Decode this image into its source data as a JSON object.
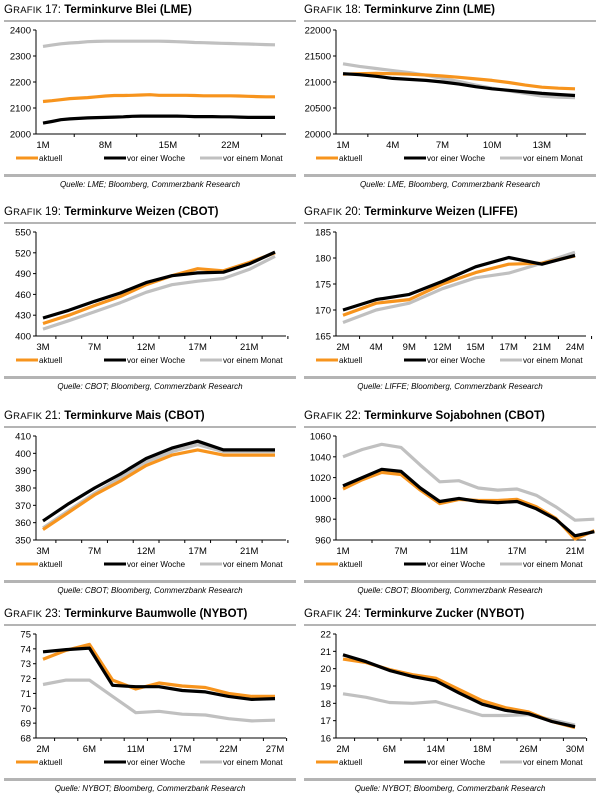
{
  "legend_labels": [
    "aktuell",
    "vor einer Woche",
    "vor einem Monat"
  ],
  "series_colors": {
    "aktuell": "#f7941d",
    "vor einer Woche": "#000000",
    "vor einem Monat": "#c0c0c0"
  },
  "grafik_prefix": "Grafik",
  "chart_data": [
    {
      "id": "g17",
      "number": "17:",
      "type": "line",
      "title": "Terminkurve Blei (LME)",
      "source": "Quelle: LME; Bloomberg, Commerzbank Research",
      "xlabel": "",
      "ylabel": "",
      "ylim": [
        2000,
        2400
      ],
      "yticks": [
        2000,
        2100,
        2200,
        2300,
        2400
      ],
      "n_points": 27,
      "xtick_labels": [
        {
          "index": 0,
          "label": "1M"
        },
        {
          "index": 7,
          "label": "8M"
        },
        {
          "index": 14,
          "label": "15M"
        },
        {
          "index": 21,
          "label": "22M"
        }
      ],
      "xtick_marks": [
        0,
        7,
        14,
        21
      ],
      "series": [
        {
          "name": "aktuell",
          "values": [
            2125,
            2128,
            2132,
            2136,
            2138,
            2140,
            2143,
            2146,
            2148,
            2148,
            2149,
            2150,
            2151,
            2149,
            2149,
            2149,
            2149,
            2148,
            2147,
            2147,
            2147,
            2147,
            2146,
            2145,
            2144,
            2143,
            2143
          ]
        },
        {
          "name": "vor einer Woche",
          "values": [
            2042,
            2048,
            2055,
            2058,
            2060,
            2062,
            2063,
            2064,
            2065,
            2066,
            2068,
            2069,
            2069,
            2069,
            2069,
            2069,
            2068,
            2067,
            2067,
            2067,
            2066,
            2066,
            2065,
            2064,
            2064,
            2064,
            2064
          ]
        },
        {
          "name": "vor einem Monat",
          "values": [
            2337,
            2342,
            2347,
            2350,
            2352,
            2355,
            2356,
            2357,
            2357,
            2357,
            2357,
            2357,
            2357,
            2357,
            2356,
            2355,
            2354,
            2352,
            2351,
            2350,
            2349,
            2348,
            2347,
            2346,
            2345,
            2344,
            2343
          ]
        }
      ]
    },
    {
      "id": "g18",
      "number": "18:",
      "type": "line",
      "title": "Terminkurve Zinn (LME)",
      "source": "Quelle: LME, Bloomberg, Commerzbank Research",
      "xlabel": "",
      "ylabel": "",
      "ylim": [
        20000,
        22000
      ],
      "yticks": [
        20000,
        20500,
        21000,
        21500,
        22000
      ],
      "n_points": 15,
      "xtick_labels": [
        {
          "index": 0,
          "label": "1M"
        },
        {
          "index": 3,
          "label": "4M"
        },
        {
          "index": 6,
          "label": "7M"
        },
        {
          "index": 9,
          "label": "10M"
        },
        {
          "index": 12,
          "label": "13M"
        }
      ],
      "xtick_marks": [
        0,
        3,
        6,
        9,
        12
      ],
      "series": [
        {
          "name": "aktuell",
          "values": [
            21150,
            21160,
            21165,
            21160,
            21150,
            21135,
            21115,
            21090,
            21060,
            21030,
            20990,
            20940,
            20900,
            20880,
            20870
          ]
        },
        {
          "name": "vor einer Woche",
          "values": [
            21160,
            21140,
            21110,
            21070,
            21050,
            21030,
            21000,
            20960,
            20910,
            20870,
            20840,
            20810,
            20780,
            20760,
            20740
          ]
        },
        {
          "name": "vor einem Monat",
          "values": [
            21350,
            21300,
            21260,
            21220,
            21180,
            21130,
            21070,
            21010,
            20940,
            20880,
            20830,
            20780,
            20730,
            20710,
            20700
          ]
        }
      ]
    },
    {
      "id": "g19",
      "number": "19:",
      "type": "line",
      "title": "Terminkurve Weizen (CBOT)",
      "source": "Quelle: CBOT; Bloomberg, Commerzbank Research",
      "xlabel": "",
      "ylabel": "",
      "ylim": [
        400,
        550
      ],
      "yticks": [
        400,
        430,
        460,
        490,
        520,
        550
      ],
      "n_points": 10,
      "xtick_labels": [
        {
          "index": 0,
          "label": "3M"
        },
        {
          "index": 2,
          "label": "7M"
        },
        {
          "index": 4,
          "label": "12M"
        },
        {
          "index": 6,
          "label": "17M"
        },
        {
          "index": 8,
          "label": "21M"
        }
      ],
      "xtick_marks": [
        0,
        1,
        2,
        3,
        4,
        5,
        6,
        7,
        8,
        9
      ],
      "series": [
        {
          "name": "aktuell",
          "values": [
            418,
            430,
            444,
            457,
            474,
            487,
            497,
            494,
            506,
            520
          ]
        },
        {
          "name": "vor einer Woche",
          "values": [
            426,
            437,
            450,
            462,
            477,
            487,
            491,
            492,
            504,
            521
          ]
        },
        {
          "name": "vor einem Monat",
          "values": [
            410,
            422,
            435,
            448,
            463,
            474,
            479,
            483,
            496,
            515
          ]
        }
      ]
    },
    {
      "id": "g20",
      "number": "20:",
      "type": "line",
      "title": "Terminkurve Weizen (LIFFE)",
      "source": "Quelle: LIFFE; Bloomberg, Commerzbank Research",
      "xlabel": "",
      "ylabel": "",
      "ylim": [
        165,
        185
      ],
      "yticks": [
        165,
        170,
        175,
        180,
        185
      ],
      "n_points": 8,
      "xtick_labels": [
        {
          "index": 0,
          "label": "2M"
        },
        {
          "index": 1,
          "label": "4M"
        },
        {
          "index": 2,
          "label": "9M"
        },
        {
          "index": 3,
          "label": "12M"
        },
        {
          "index": 4,
          "label": "15M"
        },
        {
          "index": 5,
          "label": "17M"
        },
        {
          "index": 6,
          "label": "21M"
        },
        {
          "index": 7,
          "label": "24M"
        }
      ],
      "xtick_marks": [
        0,
        1,
        2,
        3,
        4,
        5,
        6,
        7
      ],
      "series": [
        {
          "name": "aktuell",
          "values": [
            169.0,
            171.3,
            172.0,
            175.0,
            177.2,
            178.8,
            179.0,
            180.4
          ]
        },
        {
          "name": "vor einer Woche",
          "values": [
            170.0,
            172.0,
            173.0,
            175.5,
            178.3,
            180.1,
            178.8,
            180.5
          ]
        },
        {
          "name": "vor einem Monat",
          "values": [
            167.6,
            170.0,
            171.3,
            174.1,
            176.2,
            177.1,
            179.0,
            181.1
          ]
        }
      ]
    },
    {
      "id": "g21",
      "number": "21:",
      "type": "line",
      "title": "Terminkurve Mais (CBOT)",
      "source": "Quelle: CBOT; Bloomberg, Commerzbank Research",
      "xlabel": "",
      "ylabel": "",
      "ylim": [
        350,
        410
      ],
      "yticks": [
        350,
        360,
        370,
        380,
        390,
        400,
        410
      ],
      "n_points": 10,
      "xtick_labels": [
        {
          "index": 0,
          "label": "3M"
        },
        {
          "index": 2,
          "label": "7M"
        },
        {
          "index": 4,
          "label": "12M"
        },
        {
          "index": 6,
          "label": "17M"
        },
        {
          "index": 8,
          "label": "21M"
        }
      ],
      "xtick_marks": [
        0,
        1,
        2,
        3,
        4,
        5,
        6,
        7,
        8,
        9
      ],
      "series": [
        {
          "name": "aktuell",
          "values": [
            356,
            366,
            376,
            384,
            393,
            399,
            402,
            399,
            399,
            399
          ]
        },
        {
          "name": "vor einer Woche",
          "values": [
            361,
            371,
            380,
            388,
            397,
            403,
            407,
            402,
            402,
            402
          ]
        },
        {
          "name": "vor einem Monat",
          "values": [
            357,
            367,
            377,
            386,
            395,
            401,
            405,
            401,
            401,
            401
          ]
        }
      ]
    },
    {
      "id": "g22",
      "number": "22:",
      "type": "line",
      "title": "Terminkurve Sojabohnen (CBOT)",
      "source": "Quelle: CBOT; Bloomberg, Commerzbank Research",
      "xlabel": "",
      "ylabel": "",
      "ylim": [
        960,
        1060
      ],
      "yticks": [
        960,
        980,
        1000,
        1020,
        1040,
        1060
      ],
      "n_points": 13,
      "xtick_labels": [
        {
          "index": 0,
          "label": "1M"
        },
        {
          "index": 3,
          "label": "7M"
        },
        {
          "index": 6,
          "label": "11M"
        },
        {
          "index": 9,
          "label": "17M"
        },
        {
          "index": 12,
          "label": "21M"
        }
      ],
      "xtick_marks": [
        0,
        3,
        6,
        9,
        12
      ],
      "extra_points_after_last_label": 1,
      "series": [
        {
          "name": "aktuell",
          "values": [
            1009,
            1018,
            1025,
            1023,
            1008,
            995,
            999,
            998,
            998,
            999,
            992,
            981,
            961,
            969
          ]
        },
        {
          "name": "vor einer Woche",
          "values": [
            1012,
            1020,
            1028,
            1026,
            1010,
            997,
            1000,
            997,
            996,
            997,
            990,
            980,
            964,
            968
          ]
        },
        {
          "name": "vor einem Monat",
          "values": [
            1040,
            1047,
            1052,
            1049,
            1032,
            1016,
            1017,
            1010,
            1008,
            1009,
            1003,
            992,
            979,
            980
          ]
        }
      ]
    },
    {
      "id": "g23",
      "number": "23:",
      "type": "line",
      "title": "Terminkurve Baumwolle (NYBOT)",
      "source": "Quelle: NYBOT; Bloomberg, Commerzbank Research",
      "xlabel": "",
      "ylabel": "",
      "ylim": [
        68,
        75
      ],
      "yticks": [
        68,
        69,
        70,
        71,
        72,
        73,
        74,
        75
      ],
      "n_points": 11,
      "xtick_labels": [
        {
          "index": 0,
          "label": "2M"
        },
        {
          "index": 2,
          "label": "6M"
        },
        {
          "index": 4,
          "label": "11M"
        },
        {
          "index": 6,
          "label": "17M"
        },
        {
          "index": 8,
          "label": "22M"
        },
        {
          "index": 10,
          "label": "27M"
        }
      ],
      "xtick_marks": [
        0,
        1,
        2,
        3,
        4,
        5,
        6,
        7,
        8,
        9,
        10
      ],
      "series": [
        {
          "name": "aktuell",
          "values": [
            73.3,
            73.9,
            74.3,
            71.9,
            71.3,
            71.7,
            71.5,
            71.4,
            71.0,
            70.8,
            70.8
          ]
        },
        {
          "name": "vor einer Woche",
          "values": [
            73.8,
            73.95,
            74.05,
            71.55,
            71.45,
            71.45,
            71.2,
            71.1,
            70.8,
            70.6,
            70.65
          ]
        },
        {
          "name": "vor einem Monat",
          "values": [
            71.6,
            71.9,
            71.9,
            70.8,
            69.7,
            69.8,
            69.6,
            69.55,
            69.3,
            69.15,
            69.2
          ]
        }
      ]
    },
    {
      "id": "g24",
      "number": "24:",
      "type": "line",
      "title": "Terminkurve Zucker (NYBOT)",
      "source": "Quelle: NYBOT; Bloomberg, Commerzbank Research",
      "xlabel": "",
      "ylabel": "",
      "ylim": [
        16,
        22
      ],
      "yticks": [
        16,
        17,
        18,
        19,
        20,
        21,
        22
      ],
      "n_points": 11,
      "xtick_labels": [
        {
          "index": 0,
          "label": "2M"
        },
        {
          "index": 2,
          "label": "6M"
        },
        {
          "index": 4,
          "label": "14M"
        },
        {
          "index": 6,
          "label": "18M"
        },
        {
          "index": 8,
          "label": "26M"
        },
        {
          "index": 10,
          "label": "30M"
        }
      ],
      "xtick_marks": [
        0,
        1,
        2,
        3,
        4,
        5,
        6,
        7,
        8,
        9,
        10
      ],
      "series": [
        {
          "name": "aktuell",
          "values": [
            20.55,
            20.35,
            19.95,
            19.65,
            19.45,
            18.8,
            18.15,
            17.75,
            17.5,
            16.95,
            16.6
          ]
        },
        {
          "name": "vor einer Woche",
          "values": [
            20.8,
            20.4,
            19.9,
            19.55,
            19.3,
            18.6,
            17.95,
            17.6,
            17.4,
            16.95,
            16.65
          ]
        },
        {
          "name": "vor einem Monat",
          "values": [
            18.55,
            18.35,
            18.05,
            18.0,
            18.1,
            17.7,
            17.3,
            17.3,
            17.35,
            17.05,
            16.75
          ]
        }
      ]
    }
  ]
}
